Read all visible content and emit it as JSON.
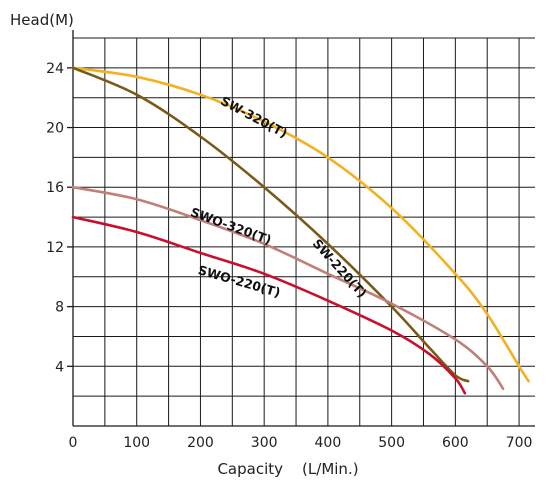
{
  "chart_data": {
    "type": "line",
    "ylabel": "Head(M)",
    "xlabel": "Capacity    (L/Min.)",
    "xlim": [
      0,
      725
    ],
    "ylim": [
      0,
      26
    ],
    "x_ticks": [
      0,
      100,
      200,
      300,
      400,
      500,
      600,
      700
    ],
    "y_ticks": [
      4,
      8,
      12,
      16,
      20,
      24
    ],
    "grid": true,
    "series": [
      {
        "name": "SW-320(T)",
        "color": "#f4b11f",
        "points": [
          [
            0,
            24
          ],
          [
            100,
            23.4
          ],
          [
            200,
            22.2
          ],
          [
            300,
            20.4
          ],
          [
            400,
            18
          ],
          [
            500,
            14.6
          ],
          [
            600,
            10.2
          ],
          [
            650,
            7.5
          ],
          [
            700,
            4
          ],
          [
            715,
            3
          ]
        ]
      },
      {
        "name": "SW-220(T)",
        "color": "#7a5a18",
        "points": [
          [
            0,
            24
          ],
          [
            100,
            22.2
          ],
          [
            200,
            19.4
          ],
          [
            300,
            16
          ],
          [
            400,
            12.2
          ],
          [
            500,
            8
          ],
          [
            560,
            5.2
          ],
          [
            600,
            3.4
          ],
          [
            620,
            3
          ]
        ]
      },
      {
        "name": "SWO-320(T)",
        "color": "#c08078",
        "points": [
          [
            0,
            16
          ],
          [
            100,
            15.2
          ],
          [
            200,
            13.8
          ],
          [
            300,
            12.2
          ],
          [
            400,
            10.2
          ],
          [
            500,
            8.2
          ],
          [
            600,
            5.8
          ],
          [
            650,
            4
          ],
          [
            675,
            2.5
          ]
        ]
      },
      {
        "name": "SWO-220(T)",
        "color": "#c8102e",
        "points": [
          [
            0,
            14
          ],
          [
            100,
            13
          ],
          [
            200,
            11.6
          ],
          [
            300,
            10.2
          ],
          [
            400,
            8.4
          ],
          [
            500,
            6.4
          ],
          [
            560,
            4.8
          ],
          [
            600,
            3.2
          ],
          [
            615,
            2.2
          ]
        ]
      }
    ]
  }
}
